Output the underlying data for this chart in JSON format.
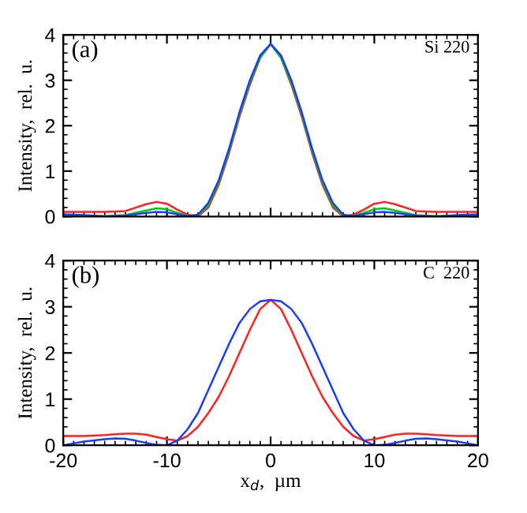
{
  "chart_data": [
    {
      "type": "line",
      "ylabel": "Intensity,  rel.  u.",
      "annotations": [
        "(a)",
        "Si 220"
      ],
      "xlim": [
        -20,
        20
      ],
      "xticks": [
        -20,
        -10,
        0,
        10,
        20
      ],
      "ylim": [
        0,
        4
      ],
      "yticks": [
        0,
        1,
        2,
        3,
        4
      ],
      "tick_labels": "y",
      "grid": false,
      "legend": false,
      "x": [
        -20,
        -18,
        -16,
        -14,
        -12,
        -11,
        -10,
        -9,
        -8,
        -7,
        -6,
        -5,
        -4,
        -3,
        -2,
        -1,
        0,
        1,
        2,
        3,
        4,
        5,
        6,
        7,
        8,
        9,
        10,
        11,
        12,
        14,
        16,
        18,
        20
      ],
      "series": [
        {
          "color": "#ff2020",
          "values": [
            0.1,
            0.1,
            0.1,
            0.12,
            0.27,
            0.32,
            0.28,
            0.15,
            0.04,
            0,
            0.2,
            0.7,
            1.4,
            2.2,
            2.9,
            3.5,
            3.8,
            3.5,
            2.9,
            2.2,
            1.4,
            0.7,
            0.2,
            0,
            0.04,
            0.15,
            0.28,
            0.32,
            0.27,
            0.12,
            0.1,
            0.1,
            0.1
          ]
        },
        {
          "color": "#00cc00",
          "values": [
            0.03,
            0.02,
            0.01,
            0.03,
            0.13,
            0.18,
            0.16,
            0.08,
            0.02,
            0.02,
            0.25,
            0.75,
            1.45,
            2.25,
            2.95,
            3.5,
            3.8,
            3.5,
            2.95,
            2.25,
            1.45,
            0.75,
            0.25,
            0.02,
            0.02,
            0.08,
            0.16,
            0.18,
            0.13,
            0.03,
            0.01,
            0.02,
            0.03
          ]
        },
        {
          "color": "#1a3cff",
          "values": [
            0.05,
            0.03,
            0.0,
            0.02,
            0.08,
            0.1,
            0.09,
            0.05,
            0.01,
            0.04,
            0.3,
            0.8,
            1.5,
            2.3,
            3.0,
            3.55,
            3.8,
            3.55,
            3.0,
            2.3,
            1.5,
            0.8,
            0.3,
            0.04,
            0.01,
            0.05,
            0.09,
            0.1,
            0.08,
            0.02,
            0.0,
            0.03,
            0.05
          ]
        }
      ]
    },
    {
      "type": "line",
      "ylabel": "Intensity,  rel.  u.",
      "xlabel": "x$_{d}$,  µm",
      "annotations": [
        "(b)",
        "C  220"
      ],
      "xlim": [
        -20,
        20
      ],
      "xticks": [
        -20,
        -10,
        0,
        10,
        20
      ],
      "ylim": [
        0,
        4
      ],
      "yticks": [
        0,
        1,
        2,
        3,
        4
      ],
      "grid": false,
      "legend": false,
      "x": [
        -20,
        -18,
        -16,
        -15,
        -14,
        -13,
        -12,
        -11,
        -10,
        -9,
        -8,
        -7,
        -6,
        -5,
        -4,
        -3,
        -2,
        -1,
        0,
        1,
        2,
        3,
        4,
        5,
        6,
        7,
        8,
        9,
        10,
        11,
        12,
        13,
        14,
        15,
        16,
        18,
        20
      ],
      "series": [
        {
          "color": "#ff2020",
          "values": [
            0.2,
            0.2,
            0.22,
            0.24,
            0.25,
            0.25,
            0.23,
            0.18,
            0.13,
            0.1,
            0.2,
            0.4,
            0.7,
            1.05,
            1.5,
            2.0,
            2.5,
            2.95,
            3.15,
            2.95,
            2.5,
            2.0,
            1.5,
            1.05,
            0.7,
            0.4,
            0.2,
            0.1,
            0.13,
            0.18,
            0.23,
            0.25,
            0.25,
            0.24,
            0.22,
            0.2,
            0.2
          ]
        },
        {
          "color": "#1a3cff",
          "values": [
            0.0,
            0.08,
            0.13,
            0.15,
            0.14,
            0.1,
            0.05,
            0.01,
            0.0,
            0.1,
            0.35,
            0.7,
            1.2,
            1.7,
            2.2,
            2.65,
            2.95,
            3.12,
            3.15,
            3.12,
            2.95,
            2.65,
            2.2,
            1.7,
            1.2,
            0.7,
            0.35,
            0.1,
            0.0,
            0.01,
            0.05,
            0.1,
            0.14,
            0.15,
            0.13,
            0.08,
            0.0
          ]
        }
      ]
    }
  ]
}
